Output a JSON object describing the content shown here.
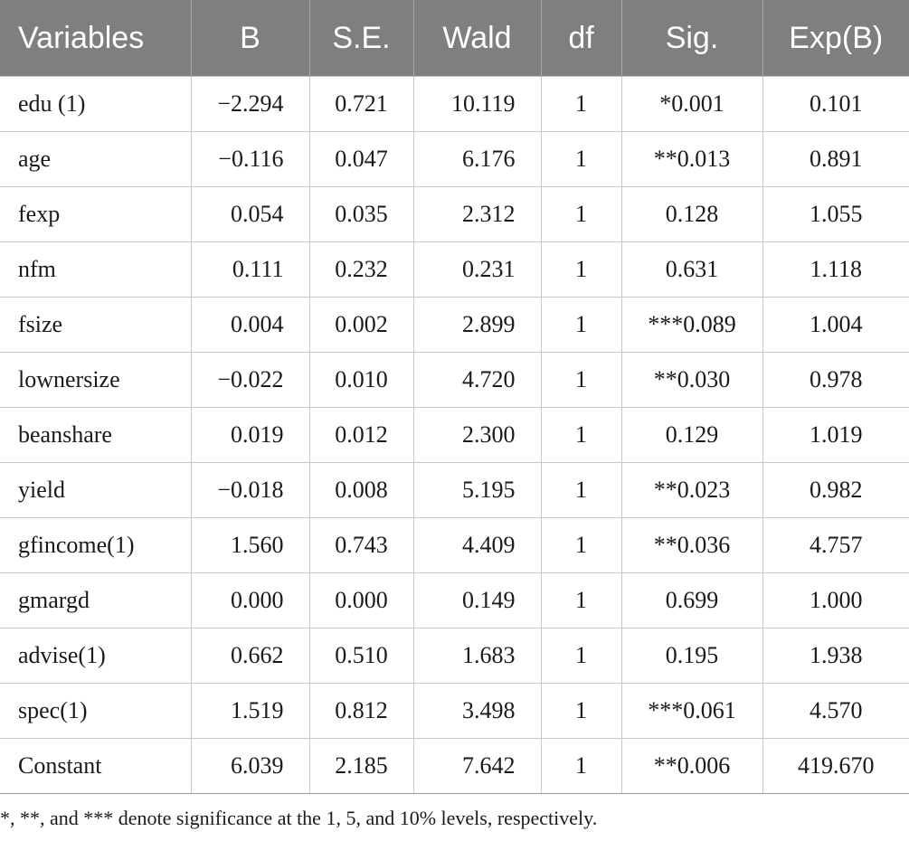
{
  "table": {
    "headers": [
      "Variables",
      "B",
      "S.E.",
      "Wald",
      "df",
      "Sig.",
      "Exp(B)"
    ],
    "rows": [
      [
        "edu (1)",
        "−2.294",
        "0.721",
        "10.119",
        "1",
        "*0.001",
        "0.101"
      ],
      [
        "age",
        "−0.116",
        "0.047",
        "6.176",
        "1",
        "**0.013",
        "0.891"
      ],
      [
        "fexp",
        "0.054",
        "0.035",
        "2.312",
        "1",
        "0.128",
        "1.055"
      ],
      [
        "nfm",
        "0.111",
        "0.232",
        "0.231",
        "1",
        "0.631",
        "1.118"
      ],
      [
        "fsize",
        "0.004",
        "0.002",
        "2.899",
        "1",
        "***0.089",
        "1.004"
      ],
      [
        "lownersize",
        "−0.022",
        "0.010",
        "4.720",
        "1",
        "**0.030",
        "0.978"
      ],
      [
        "beanshare",
        "0.019",
        "0.012",
        "2.300",
        "1",
        "0.129",
        "1.019"
      ],
      [
        "yield",
        "−0.018",
        "0.008",
        "5.195",
        "1",
        "**0.023",
        "0.982"
      ],
      [
        "gfincome(1)",
        "1.560",
        "0.743",
        "4.409",
        "1",
        "**0.036",
        "4.757"
      ],
      [
        "gmargd",
        "0.000",
        "0.000",
        "0.149",
        "1",
        "0.699",
        "1.000"
      ],
      [
        "advise(1)",
        "0.662",
        "0.510",
        "1.683",
        "1",
        "0.195",
        "1.938"
      ],
      [
        "spec(1)",
        "1.519",
        "0.812",
        "3.498",
        "1",
        "***0.061",
        "4.570"
      ],
      [
        "Constant",
        "6.039",
        "2.185",
        "7.642",
        "1",
        "**0.006",
        "419.670"
      ]
    ]
  },
  "footnote": "*, **, and *** denote significance at the 1, 5, and 10% levels, respectively.",
  "colors": {
    "header_bg": "#7f7f7f",
    "header_text": "#ffffff",
    "grid": "#c8c8c8"
  }
}
